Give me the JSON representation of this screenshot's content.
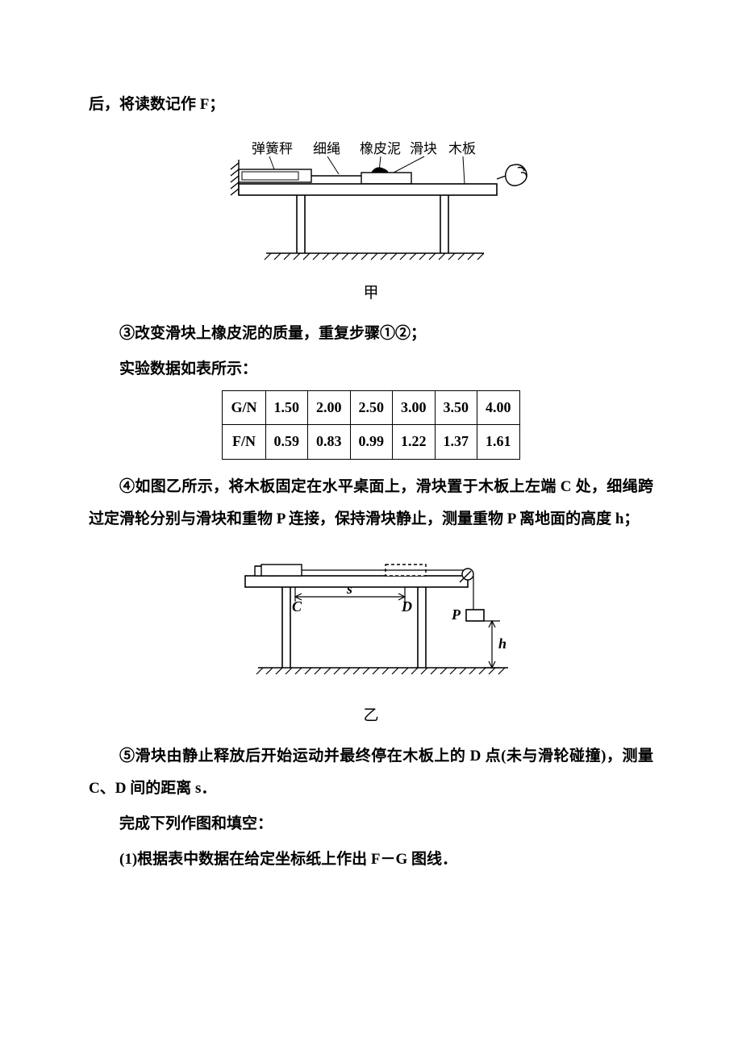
{
  "text": {
    "line1": "后，将读数记作 F；",
    "fig1_labels": [
      "弹簧秤",
      "细绳",
      "橡皮泥",
      "滑块",
      "木板"
    ],
    "fig1_caption": "甲",
    "step3": "③改变滑块上橡皮泥的质量，重复步骤①②；",
    "dataIntro": "实验数据如表所示：",
    "step4": "④如图乙所示，将木板固定在水平桌面上，滑块置于木板上左端 C 处，细绳跨过定滑轮分别与滑块和重物 P 连接，保持滑块静止，测量重物 P 离地面的高度 h；",
    "fig2_caption": "乙",
    "step5": "⑤滑块由静止释放后开始运动并最终停在木板上的 D 点(未与滑轮碰撞)，测量 C、D 间的距离 s．",
    "prompt": "完成下列作图和填空：",
    "q1": "(1)根据表中数据在给定坐标纸上作出 F－G 图线．",
    "fig2_s": "s",
    "fig2_C": "C",
    "fig2_D": "D",
    "fig2_P": "P",
    "fig2_h": "h"
  },
  "table": {
    "row1_header": "G/N",
    "row2_header": "F/N",
    "G": [
      "1.50",
      "2.00",
      "2.50",
      "3.00",
      "3.50",
      "4.00"
    ],
    "F": [
      "0.59",
      "0.83",
      "0.99",
      "1.22",
      "1.37",
      "1.61"
    ]
  },
  "style": {
    "stroke": "#000000",
    "fill": "#ffffff",
    "font_body": 19,
    "font_table": 18,
    "svg1_w": 400,
    "svg1_h": 180,
    "svg2_w": 380,
    "svg2_h": 190
  }
}
